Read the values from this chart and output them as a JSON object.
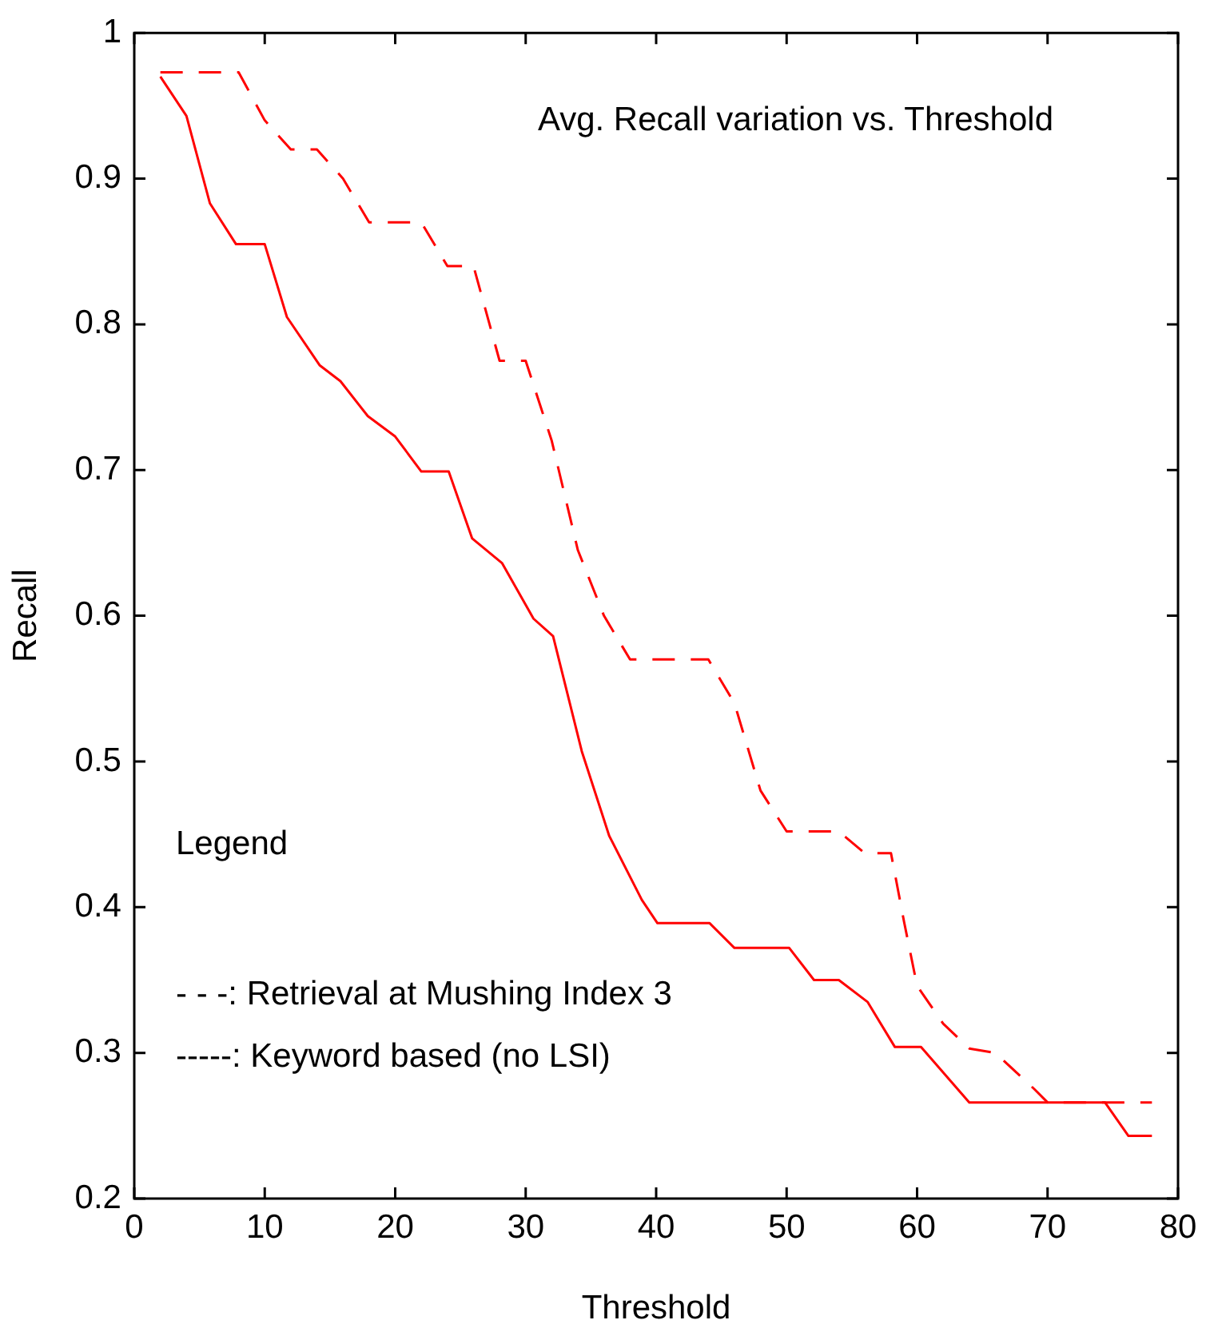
{
  "chart_data": {
    "type": "line",
    "title": "Avg. Recall variation vs. Threshold",
    "xlabel": "Threshold",
    "ylabel": "Recall",
    "annotations": [
      "Legend",
      "- - -: Retrieval at Mushing Index 3",
      "-----: Keyword based (no LSI)"
    ],
    "xlim": [
      0,
      80
    ],
    "xticks": [
      0,
      10,
      20,
      30,
      40,
      50,
      60,
      70,
      80
    ],
    "ylim": [
      0.2,
      1
    ],
    "yticks": [
      0.2,
      0.3,
      0.4,
      0.5,
      0.6,
      0.7,
      0.8,
      0.9,
      1
    ],
    "grid": false,
    "legend": false,
    "marker": "none",
    "series": [
      {
        "color": "#ff0000",
        "line_style": "dashed",
        "x": [
          2,
          8,
          10,
          12,
          14,
          16,
          18,
          22,
          24,
          26,
          28,
          30,
          32,
          34,
          36,
          38,
          44,
          46,
          48,
          50,
          54,
          56,
          58,
          59,
          60,
          62,
          64,
          66,
          69,
          70,
          78
        ],
        "values": [
          0.973,
          0.973,
          0.94,
          0.92,
          0.92,
          0.9,
          0.87,
          0.87,
          0.84,
          0.84,
          0.775,
          0.775,
          0.72,
          0.645,
          0.6,
          0.57,
          0.57,
          0.54,
          0.48,
          0.452,
          0.452,
          0.437,
          0.437,
          0.39,
          0.346,
          0.32,
          0.303,
          0.3,
          0.275,
          0.266,
          0.266
        ]
      },
      {
        "color": "#ff0000",
        "line_style": "solid",
        "x": [
          2,
          4,
          5.8,
          7.8,
          10,
          11.7,
          14.2,
          15.8,
          17.9,
          20,
          22,
          24.1,
          25.9,
          28.2,
          30.6,
          32.1,
          34.3,
          36.4,
          38.9,
          40.1,
          44.1,
          46,
          50.2,
          52.1,
          54,
          56.2,
          58.3,
          60.3,
          64,
          74.4,
          76.2,
          78
        ],
        "values": [
          0.97,
          0.943,
          0.883,
          0.855,
          0.855,
          0.805,
          0.772,
          0.761,
          0.737,
          0.723,
          0.699,
          0.699,
          0.653,
          0.636,
          0.598,
          0.586,
          0.507,
          0.449,
          0.405,
          0.389,
          0.389,
          0.372,
          0.372,
          0.35,
          0.35,
          0.335,
          0.304,
          0.304,
          0.266,
          0.266,
          0.243,
          0.243
        ]
      }
    ]
  }
}
